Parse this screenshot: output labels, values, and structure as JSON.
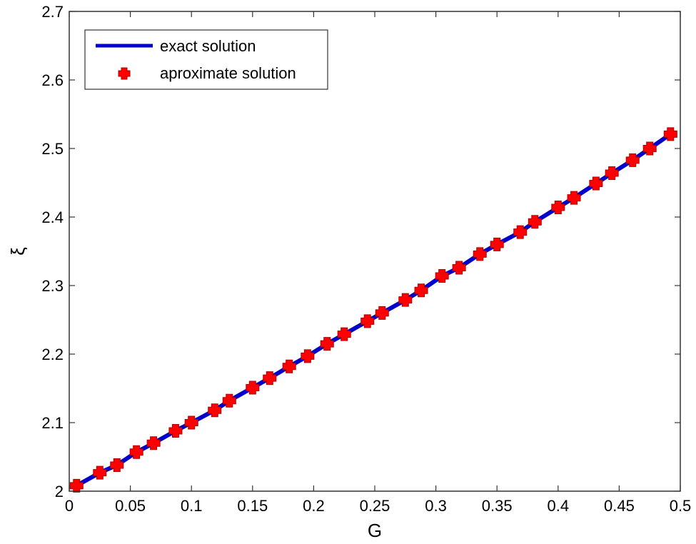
{
  "chart_data": {
    "type": "line",
    "title": "",
    "xlabel": "G",
    "ylabel": "ξ",
    "xlim": [
      0,
      0.5
    ],
    "ylim": [
      2,
      2.7
    ],
    "grid": false,
    "legend_position": "upper left",
    "x_ticks": [
      "0",
      "0.05",
      "0.1",
      "0.15",
      "0.2",
      "0.25",
      "0.3",
      "0.35",
      "0.4",
      "0.45",
      "0.5"
    ],
    "y_ticks": [
      "2",
      "2.1",
      "2.2",
      "2.3",
      "2.4",
      "2.5",
      "2.6",
      "2.7"
    ],
    "x_tick_values": [
      0,
      0.05,
      0.1,
      0.15,
      0.2,
      0.25,
      0.3,
      0.35,
      0.4,
      0.45,
      0.5
    ],
    "y_tick_values": [
      2,
      2.1,
      2.2,
      2.3,
      2.4,
      2.5,
      2.6,
      2.7
    ],
    "series": [
      {
        "name": "exact solution",
        "style": "line",
        "color": "#0000cc",
        "x": [
          0.006,
          0.025,
          0.039,
          0.055,
          0.069,
          0.087,
          0.1,
          0.119,
          0.131,
          0.15,
          0.164,
          0.18,
          0.195,
          0.211,
          0.225,
          0.244,
          0.256,
          0.275,
          0.288,
          0.305,
          0.319,
          0.336,
          0.35,
          0.369,
          0.381,
          0.4,
          0.413,
          0.431,
          0.444,
          0.461,
          0.475,
          0.492
        ],
        "values": [
          2.008,
          2.027,
          2.038,
          2.057,
          2.07,
          2.088,
          2.1,
          2.118,
          2.132,
          2.151,
          2.165,
          2.182,
          2.197,
          2.215,
          2.229,
          2.248,
          2.26,
          2.279,
          2.293,
          2.314,
          2.326,
          2.346,
          2.36,
          2.378,
          2.393,
          2.414,
          2.428,
          2.449,
          2.464,
          2.483,
          2.5,
          2.521
        ]
      },
      {
        "name": "aproximate solution",
        "style": "marker",
        "marker": "plus-filled",
        "color": "#ff0000",
        "edge_color": "#b00000",
        "x": [
          0.006,
          0.025,
          0.039,
          0.055,
          0.069,
          0.087,
          0.1,
          0.119,
          0.131,
          0.15,
          0.164,
          0.18,
          0.195,
          0.211,
          0.225,
          0.244,
          0.256,
          0.275,
          0.288,
          0.305,
          0.319,
          0.336,
          0.35,
          0.369,
          0.381,
          0.4,
          0.413,
          0.431,
          0.444,
          0.461,
          0.475,
          0.492
        ],
        "values": [
          2.008,
          2.027,
          2.038,
          2.057,
          2.07,
          2.088,
          2.1,
          2.118,
          2.132,
          2.151,
          2.165,
          2.182,
          2.197,
          2.215,
          2.229,
          2.248,
          2.26,
          2.279,
          2.293,
          2.314,
          2.326,
          2.346,
          2.36,
          2.378,
          2.393,
          2.414,
          2.428,
          2.449,
          2.464,
          2.483,
          2.5,
          2.521
        ]
      }
    ]
  },
  "legend": {
    "items": [
      {
        "label": "exact solution",
        "icon": "blue-line"
      },
      {
        "label": "aproximate solution",
        "icon": "red-plus-marker"
      }
    ]
  },
  "axes": {
    "xlabel": "G",
    "ylabel": "ξ"
  },
  "colors": {
    "line": "#0000cc",
    "marker": "#ff0000",
    "marker_edge": "#b00000",
    "axes": "#333333"
  }
}
